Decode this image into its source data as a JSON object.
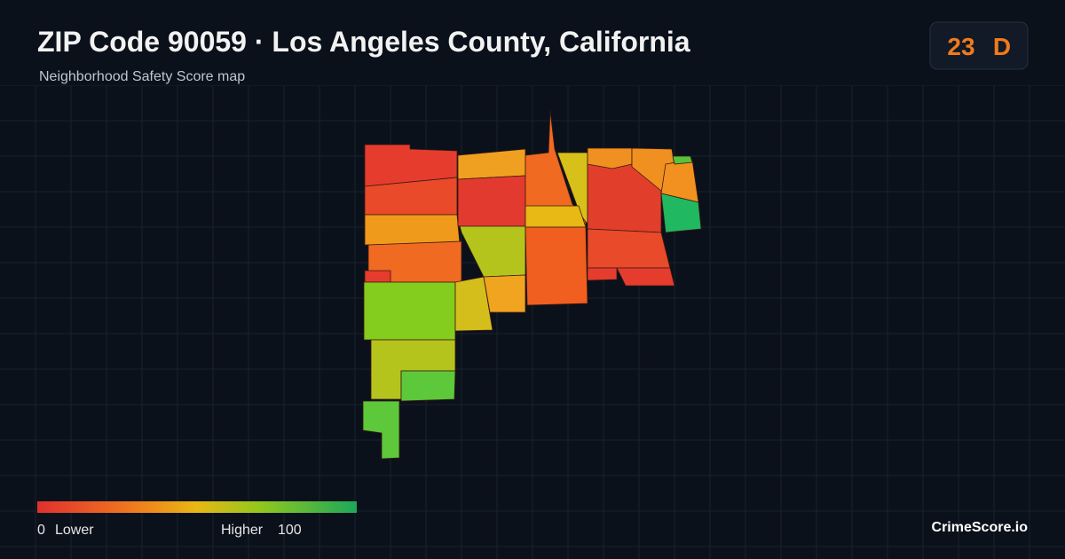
{
  "header": {
    "title": "ZIP Code 90059 · Los Angeles County, California",
    "subtitle": "Neighborhood Safety Score map"
  },
  "badge": {
    "score": 23,
    "grade": "D"
  },
  "legend": {
    "min": 0,
    "min_label": "Lower",
    "max_label": "Higher",
    "max": 100
  },
  "brand": "CrimeScore.io"
}
